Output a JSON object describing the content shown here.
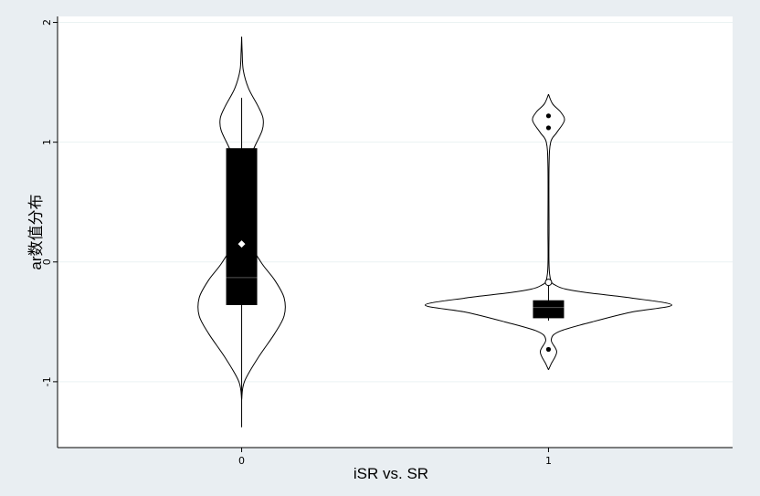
{
  "chart_data": {
    "type": "violin",
    "xlabel": "iSR vs. SR",
    "ylabel": "ar数值分布",
    "categories": [
      "0",
      "1"
    ],
    "xlim": [
      -0.6,
      1.6
    ],
    "ylim": [
      -1.55,
      2.05
    ],
    "yticks": [
      2,
      1,
      0,
      -1
    ],
    "grid": true,
    "colors": {
      "background": "#e9eef2",
      "plot_area": "#ffffff",
      "box": "#000000",
      "gridline": "#eaf2f3",
      "line": "#000000"
    },
    "groups": [
      {
        "category": "0",
        "whisker_low": -1.38,
        "whisker_high": 1.37,
        "q1": -0.36,
        "q3": 0.95,
        "median": -0.13,
        "mean": 0.15,
        "outliers": [],
        "density_range": [
          -1.15,
          1.88
        ],
        "density": [
          [
            -1.15,
            0.0
          ],
          [
            -1.0,
            0.01
          ],
          [
            -0.8,
            0.06
          ],
          [
            -0.6,
            0.12
          ],
          [
            -0.45,
            0.155
          ],
          [
            -0.3,
            0.155
          ],
          [
            -0.15,
            0.12
          ],
          [
            0.0,
            0.07
          ],
          [
            0.2,
            0.025
          ],
          [
            0.5,
            0.012
          ],
          [
            0.8,
            0.02
          ],
          [
            0.95,
            0.045
          ],
          [
            1.1,
            0.075
          ],
          [
            1.2,
            0.078
          ],
          [
            1.3,
            0.06
          ],
          [
            1.45,
            0.025
          ],
          [
            1.6,
            0.006
          ],
          [
            1.75,
            0.002
          ],
          [
            1.88,
            0.0
          ]
        ]
      },
      {
        "category": "1",
        "whisker_low": -0.49,
        "whisker_high": -0.18,
        "q1": -0.47,
        "q3": -0.32,
        "median": -0.38,
        "mean": -0.17,
        "outliers": [
          -0.73,
          1.12,
          1.22
        ],
        "density_range": [
          -0.9,
          1.4
        ],
        "density": [
          [
            -0.9,
            0.0
          ],
          [
            -0.85,
            0.01
          ],
          [
            -0.75,
            0.03
          ],
          [
            -0.65,
            0.01
          ],
          [
            -0.58,
            0.04
          ],
          [
            -0.5,
            0.16
          ],
          [
            -0.42,
            0.3
          ],
          [
            -0.36,
            0.45
          ],
          [
            -0.3,
            0.3
          ],
          [
            -0.25,
            0.12
          ],
          [
            -0.2,
            0.03
          ],
          [
            -0.1,
            0.004
          ],
          [
            0.3,
            0.002
          ],
          [
            0.8,
            0.002
          ],
          [
            1.0,
            0.008
          ],
          [
            1.08,
            0.03
          ],
          [
            1.18,
            0.058
          ],
          [
            1.25,
            0.045
          ],
          [
            1.32,
            0.015
          ],
          [
            1.4,
            0.0
          ]
        ]
      }
    ]
  }
}
